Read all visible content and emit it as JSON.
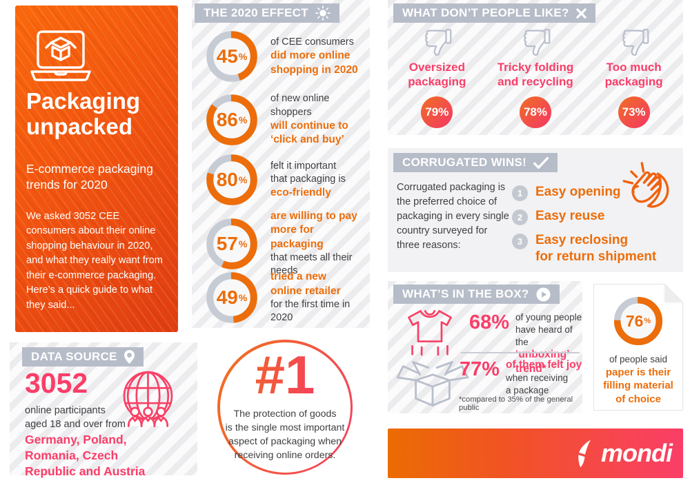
{
  "colors": {
    "orange": "#EC6D0A",
    "pink": "#FA3E68",
    "header_gray": "#B6BCC8",
    "dark_text": "#3F3F41",
    "donut_track": "#C6CBD4",
    "card_gradient": [
      "#FA680C",
      "#E03C12"
    ],
    "bar_gradient": [
      "#EB6C02",
      "#FA3E68"
    ]
  },
  "left_card": {
    "title": "Packaging\nunpacked",
    "subtitle": "E-commerce packaging\ntrends for 2020",
    "body": "We asked 3052 CEE\nconsumers about their online\nshopping behaviour in 2020,\nand what they really want from\ntheir e-commerce packaging.\nHere’s a quick guide to what\nthey said..."
  },
  "data_source": {
    "header": "DATA SOURCE",
    "stat": "3052",
    "stat_desc": "online participants\naged 18 and over from",
    "countries": "Germany, Poland,\nRomania, Czech\nRepublic and Austria"
  },
  "effect": {
    "header": "THE 2020 EFFECT",
    "percent_sign": "%",
    "stats": [
      {
        "value": "45",
        "lines": [
          {
            "t": "of CEE consumers",
            "em": false
          },
          {
            "t": "did more online",
            "em": true
          },
          {
            "t": "shopping in 2020",
            "em": true
          }
        ]
      },
      {
        "value": "86",
        "lines": [
          {
            "t": "of new online shoppers",
            "em": false
          },
          {
            "t": "will continue to",
            "em": true
          },
          {
            "t": "‘click and buy’",
            "em": true
          }
        ]
      },
      {
        "value": "80",
        "lines": [
          {
            "t": "felt it important",
            "em": false
          },
          {
            "t": "that packaging is",
            "em": false
          },
          {
            "t": "eco-friendly",
            "em": true
          }
        ]
      },
      {
        "value": "57",
        "lines": [
          {
            "t": "are willing to pay",
            "em": true
          },
          {
            "t": "more for packaging",
            "em": true
          },
          {
            "t": "that meets all their needs",
            "em": false
          }
        ]
      },
      {
        "value": "49",
        "lines": [
          {
            "t": "tried a new",
            "em": true
          },
          {
            "t": "online retailer",
            "em": true
          },
          {
            "t": "for the first time in 2020",
            "em": false
          }
        ]
      }
    ]
  },
  "number_one": {
    "rank": "#1",
    "text": "The protection of goods\nis the single most important\naspect of packaging when\nreceiving online orders."
  },
  "dislikes": {
    "header": "WHAT DON’T PEOPLE LIKE?",
    "items": [
      {
        "label": "Oversized\npackaging",
        "value": "79%"
      },
      {
        "label": "Tricky folding\nand recycling",
        "value": "78%"
      },
      {
        "label": "Too much\npackaging",
        "value": "73%"
      }
    ]
  },
  "corrugated": {
    "header": "CORRUGATED WINS!",
    "body": "Corrugated packaging is\nthe preferred choice of\npackaging in every single\ncountry surveyed for\nthree reasons:",
    "reasons": [
      {
        "num": "1",
        "text": "Easy opening"
      },
      {
        "num": "2",
        "text": "Easy reuse"
      },
      {
        "num": "3",
        "text": "Easy reclosing\nfor return shipment"
      }
    ]
  },
  "box": {
    "header": "WHAT’S IN THE BOX?",
    "facts": [
      {
        "value": "68%",
        "lines": [
          {
            "t": "of young people",
            "em": false
          },
          {
            "t": "have heard of the",
            "em": false
          },
          {
            "t": "‘unboxing’ trend*",
            "em": true
          }
        ]
      },
      {
        "value": "77%",
        "lines": [
          {
            "t": "of them felt joy",
            "em": true
          },
          {
            "t": "when receiving",
            "em": false
          },
          {
            "t": "a package",
            "em": false
          }
        ]
      }
    ],
    "footnote": "*compared to 35% of the general public"
  },
  "paper": {
    "value": "76",
    "lines": [
      {
        "t": "of people said",
        "em": false
      },
      {
        "t": "paper is their",
        "em": true
      },
      {
        "t": "filling material",
        "em": true
      },
      {
        "t": "of choice",
        "em": true
      }
    ]
  },
  "brand": {
    "name": "mondi"
  },
  "chart_data": [
    {
      "type": "pie",
      "title": "THE 2020 EFFECT",
      "unit": "%",
      "note": "five independent donut gauges, orange arc clockwise from top",
      "series": [
        {
          "name": "did more online shopping in 2020 (of CEE consumers)",
          "value": 45
        },
        {
          "name": "will continue to ‘click and buy’ (of new online shoppers)",
          "value": 86
        },
        {
          "name": "felt it important that packaging is eco-friendly",
          "value": 80
        },
        {
          "name": "are willing to pay more for packaging that meets all their needs",
          "value": 57
        },
        {
          "name": "tried a new online retailer for the first time in 2020",
          "value": 49
        }
      ]
    },
    {
      "type": "bar",
      "title": "WHAT DON’T PEOPLE LIKE?",
      "unit": "%",
      "categories": [
        "Oversized packaging",
        "Tricky folding and recycling",
        "Too much packaging"
      ],
      "values": [
        79,
        78,
        73
      ]
    },
    {
      "type": "bar",
      "title": "WHAT’S IN THE BOX?",
      "unit": "%",
      "categories": [
        "of young people have heard of the ‘unboxing’ trend (*compared to 35% of the general public)",
        "of them felt joy when receiving a package"
      ],
      "values": [
        68,
        77
      ]
    },
    {
      "type": "pie",
      "title": "paper is their filling material of choice",
      "unit": "%",
      "values": [
        76
      ]
    }
  ]
}
